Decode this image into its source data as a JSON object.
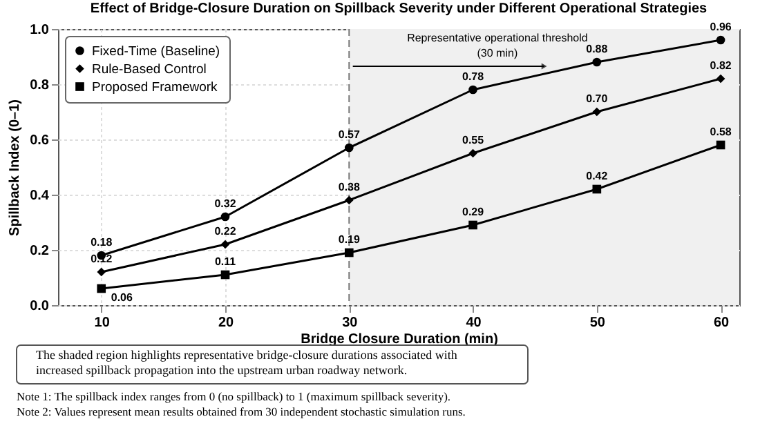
{
  "chart_data": {
    "type": "line",
    "title": "Effect of Bridge-Closure Duration on Spillback Severity under Different Operational Strategies",
    "xlabel": "Bridge Closure Duration (min)",
    "ylabel": "Spillback Index (0–1)",
    "x": [
      10,
      20,
      30,
      40,
      50,
      60
    ],
    "series": [
      {
        "name": "Fixed-Time (Baseline)",
        "color": "#000000",
        "marker": "circle",
        "values": [
          0.18,
          0.32,
          0.57,
          0.78,
          0.88,
          0.96
        ],
        "value_labels": [
          "0.18",
          "0.32",
          "0.57",
          "0.78",
          "0.88",
          "0.96"
        ]
      },
      {
        "name": "Rule-Based Control",
        "color": "#000000",
        "marker": "diamond",
        "values": [
          0.12,
          0.22,
          0.38,
          0.55,
          0.7,
          0.82
        ],
        "value_labels": [
          "0.12",
          "0.22",
          "0.38",
          "0.55",
          "0.70",
          "0.82"
        ]
      },
      {
        "name": "Proposed Framework",
        "color": "#000000",
        "marker": "square",
        "values": [
          0.06,
          0.11,
          0.19,
          0.29,
          0.42,
          0.58
        ],
        "value_labels": [
          "0.06",
          "0.11",
          "0.19",
          "0.29",
          "0.42",
          "0.58"
        ]
      }
    ],
    "xlim": [
      6.5,
      61.5
    ],
    "xticks": [
      10,
      20,
      30,
      40,
      50,
      60
    ],
    "ylim": [
      0,
      1
    ],
    "yticks": [
      {
        "value": 0,
        "label": "0.0"
      },
      0.2,
      0.4,
      0.6,
      0.8,
      {
        "value": 1,
        "label": "1.0"
      }
    ],
    "grid": true,
    "legend": "top left",
    "line_style": "solid",
    "ref_lines": [
      {
        "axis": "x",
        "value": 30,
        "label": "Representative operational threshold (30 min)",
        "color": "#777777",
        "line_style": "dashed"
      }
    ],
    "bands": [
      {
        "axis": "x",
        "from": 30,
        "to": 61.5,
        "color": "#f0f0f0"
      }
    ],
    "annotations": [
      "The shaded region highlights representative bridge-closure durations associated with increased spillback propagation into the upstream urban roadway network.",
      "Note 1: The spillback index ranges from 0 (no spillback) to 1 (maximum spillback severity).",
      "Note 2: Values represent mean results obtained from 30 independent stochastic simulation runs."
    ]
  }
}
